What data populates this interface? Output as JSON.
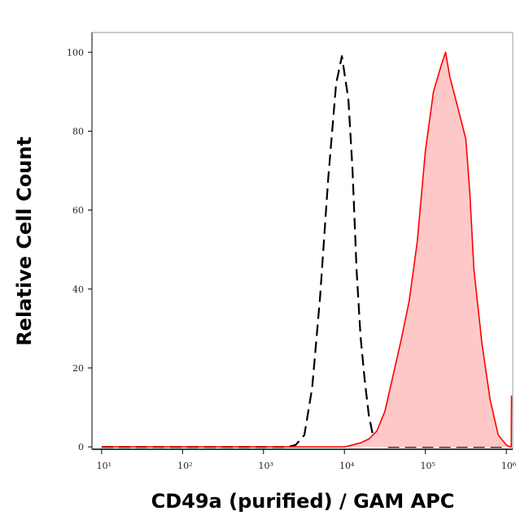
{
  "chart_data": {
    "type": "histogram-overlay",
    "x_label": "CD49a (purified) / GAM APC",
    "y_label": "Relative Cell Count",
    "xscale": "log",
    "xlim": [
      7.6,
      1200000
    ],
    "ylim": [
      -0.6,
      105
    ],
    "xticks": [
      {
        "value": 10,
        "label": "10¹"
      },
      {
        "value": 100,
        "label": "10²"
      },
      {
        "value": 1000,
        "label": "10³"
      },
      {
        "value": 10000,
        "label": "10⁴"
      },
      {
        "value": 100000,
        "label": "10⁵"
      },
      {
        "value": 1000000,
        "label": "10⁶"
      }
    ],
    "yticks": [
      0,
      20,
      40,
      60,
      80,
      100
    ],
    "series": [
      {
        "color": "#000000",
        "dash": true,
        "x": [
          10,
          2000,
          2500,
          3200,
          4000,
          5000,
          6300,
          7900,
          9300,
          11200,
          12600,
          14100,
          15800,
          17800,
          20000,
          22400,
          25100,
          31600,
          1000000
        ],
        "values": [
          0,
          0,
          0.5,
          3,
          15,
          38,
          68,
          92,
          99,
          88,
          70,
          45,
          28,
          17,
          8,
          3,
          1,
          0,
          0
        ]
      },
      {
        "color": "#ff0000",
        "fill": "#ffc8c8",
        "dash": false,
        "x": [
          10,
          10000,
          12600,
          15800,
          20000,
          25100,
          31600,
          39800,
          50100,
          63100,
          79400,
          100000,
          125900,
          158500,
          177800,
          199500,
          251200,
          316200,
          354800,
          398100,
          501200,
          631000,
          794300,
          1000000,
          1122000,
          1150000,
          1160000
        ],
        "values": [
          0,
          0,
          0.5,
          1,
          2,
          4,
          9,
          18,
          27,
          37,
          52,
          75,
          90,
          97,
          100,
          94,
          86,
          78,
          64,
          45,
          26,
          12,
          3,
          0.5,
          0,
          0,
          13
        ]
      }
    ]
  }
}
